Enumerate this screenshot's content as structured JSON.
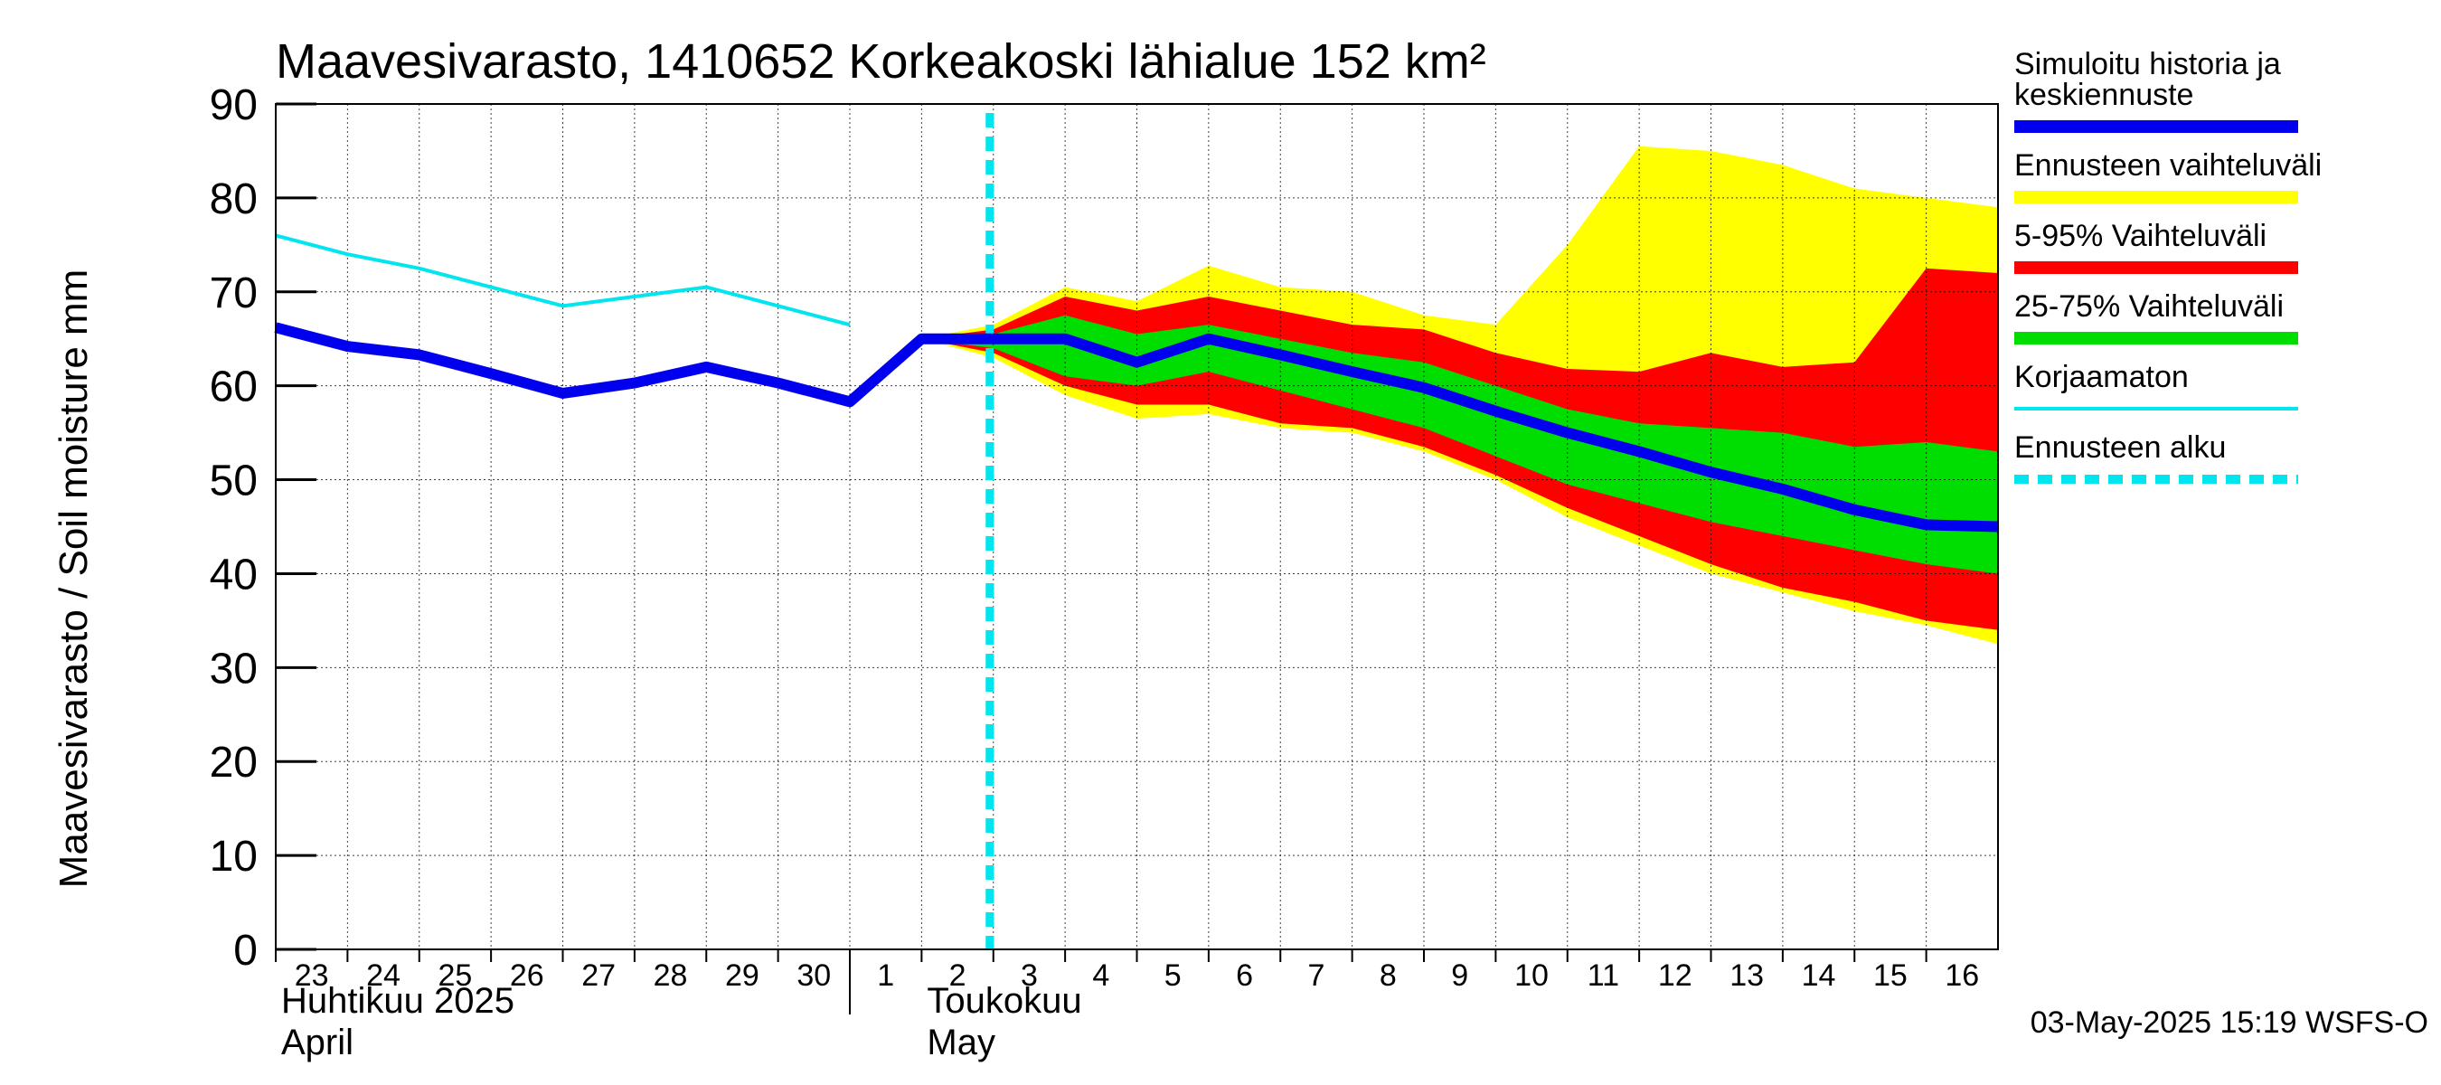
{
  "chart_data": {
    "type": "area",
    "title": "Maavesivarasto, 1410652 Korkeakoski lähialue 152 km²",
    "ylabel": "Maavesivarasto / Soil moisture   mm",
    "ylim": [
      0,
      90
    ],
    "yticks": [
      0,
      10,
      20,
      30,
      40,
      50,
      60,
      70,
      80,
      90
    ],
    "x_days": [
      23,
      24,
      25,
      26,
      27,
      28,
      29,
      30,
      1,
      2,
      3,
      4,
      5,
      6,
      7,
      8,
      9,
      10,
      11,
      12,
      13,
      14,
      15,
      16
    ],
    "month_labels": [
      {
        "fi": "Huhtikuu  2025",
        "en": "April"
      },
      {
        "fi": "Toukokuu",
        "en": "May"
      }
    ],
    "forecast_start_index": 10,
    "series": [
      {
        "name": "Ennusteen vaihteluväli",
        "color": "#ffff00",
        "kind": "band",
        "x": [
          9,
          10,
          11,
          12,
          13,
          14,
          15,
          16,
          17,
          18,
          19,
          20,
          21,
          22,
          23,
          24
        ],
        "upper": [
          65,
          66.5,
          70.5,
          69,
          72.8,
          70.5,
          70,
          67.5,
          66.5,
          75,
          85.5,
          85,
          83.5,
          81,
          80,
          79
        ],
        "lower": [
          65,
          63,
          59,
          56.5,
          57,
          55.5,
          55,
          53,
          50,
          46,
          43,
          40,
          38,
          36,
          34.5,
          32.5
        ]
      },
      {
        "name": "5-95% Vaihteluväli",
        "color": "#ff0000",
        "kind": "band",
        "x": [
          9,
          10,
          11,
          12,
          13,
          14,
          15,
          16,
          17,
          18,
          19,
          20,
          21,
          22,
          23,
          24
        ],
        "upper": [
          65,
          66,
          69.5,
          68,
          69.5,
          68,
          66.5,
          66,
          63.5,
          61.8,
          61.5,
          63.5,
          62,
          62.5,
          72.5,
          72
        ],
        "lower": [
          65,
          63.5,
          60,
          58,
          58,
          56,
          55.5,
          53.5,
          50.5,
          47,
          44,
          41,
          38.5,
          37,
          35,
          34
        ]
      },
      {
        "name": "25-75% Vaihteluväli",
        "color": "#00dd00",
        "kind": "band",
        "x": [
          9,
          10,
          11,
          12,
          13,
          14,
          15,
          16,
          17,
          18,
          19,
          20,
          21,
          22,
          23,
          24
        ],
        "upper": [
          65,
          65.5,
          67.5,
          65.5,
          66.5,
          65,
          63.5,
          62.5,
          60,
          57.5,
          56,
          55.5,
          55,
          53.5,
          54,
          53
        ],
        "lower": [
          65,
          64,
          61,
          60,
          61.5,
          59.5,
          57.5,
          55.5,
          52.5,
          49.5,
          47.5,
          45.5,
          44,
          42.5,
          41,
          40
        ]
      },
      {
        "name": "Korjaamaton",
        "color": "#00e5ee",
        "kind": "line",
        "width": 4,
        "x": [
          0,
          1,
          2,
          3,
          4,
          5,
          6,
          7,
          8
        ],
        "values": [
          76,
          74,
          72.5,
          70.5,
          68.5,
          69.5,
          70.5,
          68.5,
          66.5
        ]
      },
      {
        "name": "Simuloitu historia ja keskiennuste",
        "color": "#0000ee",
        "kind": "line",
        "width": 12,
        "x": [
          0,
          1,
          2,
          3,
          4,
          5,
          6,
          7,
          8,
          9,
          10,
          11,
          12,
          13,
          14,
          15,
          16,
          17,
          18,
          19,
          20,
          21,
          22,
          23,
          24
        ],
        "values": [
          66.2,
          64.2,
          63.3,
          61.3,
          59.2,
          60.3,
          62,
          60.3,
          58.3,
          65,
          65,
          65,
          62.5,
          65,
          63.3,
          61.5,
          59.8,
          57.3,
          55,
          53,
          50.8,
          49,
          46.8,
          45.2,
          45
        ]
      }
    ],
    "legend": [
      {
        "label": "Simuloitu historia ja",
        "label2": "keskiennuste",
        "color": "#0000ee",
        "style": "thick"
      },
      {
        "label": "Ennusteen vaihteluväli",
        "color": "#ffff00",
        "style": "thick"
      },
      {
        "label": "5-95% Vaihteluväli",
        "color": "#ff0000",
        "style": "thick"
      },
      {
        "label": "25-75% Vaihteluväli",
        "color": "#00dd00",
        "style": "thick"
      },
      {
        "label": "Korjaamaton",
        "color": "#00e5ee",
        "style": "thin"
      },
      {
        "label": "Ennusteen alku",
        "color": "#00e5ee",
        "style": "dashed"
      }
    ],
    "timestamp": "03-May-2025 15:19 WSFS-O"
  }
}
